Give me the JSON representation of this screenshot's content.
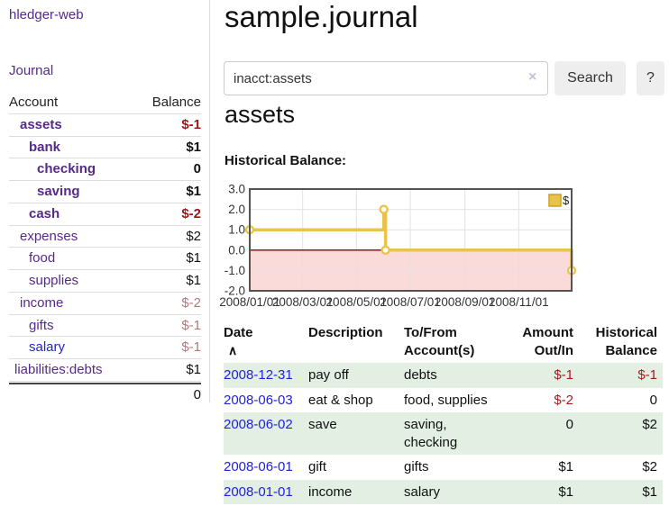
{
  "brand": {
    "label": "hledger-web"
  },
  "nav": {
    "journal": "Journal"
  },
  "sidebar": {
    "headers": {
      "account": "Account",
      "balance": "Balance"
    },
    "rows": [
      {
        "account": "assets",
        "balance": "$-1"
      },
      {
        "account": "bank",
        "balance": "$1"
      },
      {
        "account": "checking",
        "balance": "0"
      },
      {
        "account": "saving",
        "balance": "$1"
      },
      {
        "account": "cash",
        "balance": "$-2"
      },
      {
        "account": "expenses",
        "balance": "$2"
      },
      {
        "account": "food",
        "balance": "$1"
      },
      {
        "account": "supplies",
        "balance": "$1"
      },
      {
        "account": "income",
        "balance": "$-2"
      },
      {
        "account": "gifts",
        "balance": "$-1"
      },
      {
        "account": "salary",
        "balance": "$-1"
      },
      {
        "account": "liabilities:debts",
        "balance": "$1"
      }
    ],
    "total": "0"
  },
  "header": {
    "title": "sample.journal"
  },
  "search": {
    "value": "inacct:assets",
    "clear_icon": "×",
    "search_button": "Search",
    "help_button": "?"
  },
  "account_view": {
    "heading": "assets",
    "chart_title": "Historical Balance:"
  },
  "chart_data": {
    "type": "line",
    "step": true,
    "title": "Historical Balance",
    "legend": "$",
    "legend_position": "top-right",
    "grid": true,
    "x_start": "2008-01-01",
    "x_end": "2008-12-31",
    "points": [
      [
        "2008-01-01",
        1
      ],
      [
        "2008-06-01",
        2
      ],
      [
        "2008-06-03",
        0
      ],
      [
        "2008-12-31",
        -1
      ]
    ],
    "y_ticks": [
      3.0,
      2.0,
      1.0,
      0.0,
      -1.0,
      -2.0
    ],
    "ylim": [
      -2,
      3
    ],
    "x_tick_labels": [
      "2008/01/01",
      "2008/03/01",
      "2008/05/01",
      "2008/07/01",
      "2008/09/01",
      "2008/11/01"
    ],
    "colors": {
      "line": "#e8c44f",
      "marker_fill": "#ffffff",
      "negative_fill": "#fbdada",
      "zero_line": "#8b0000",
      "border": "#545454",
      "gridline": "#e2e2e2",
      "legend_border": "#c9a227"
    }
  },
  "register": {
    "headers": {
      "date": "Date",
      "sort_icon": "∧",
      "description": "Description",
      "tofrom1": "To/From",
      "tofrom2": "Account(s)",
      "amount1": "Amount",
      "amount2": "Out/In",
      "hist1": "Historical",
      "hist2": "Balance"
    },
    "rows": [
      {
        "date": "2008-12-31",
        "description": "pay off",
        "accounts": "debts",
        "amount": "$-1",
        "balance": "$-1"
      },
      {
        "date": "2008-06-03",
        "description": "eat & shop",
        "accounts": "food, supplies",
        "amount": "$-2",
        "balance": "0"
      },
      {
        "date": "2008-06-02",
        "description": "save",
        "accounts": "saving, checking",
        "amount": "0",
        "balance": "$2"
      },
      {
        "date": "2008-06-01",
        "description": "gift",
        "accounts": "gifts",
        "amount": "$1",
        "balance": "$2"
      },
      {
        "date": "2008-01-01",
        "description": "income",
        "accounts": "salary",
        "amount": "$1",
        "balance": "$1"
      }
    ]
  }
}
